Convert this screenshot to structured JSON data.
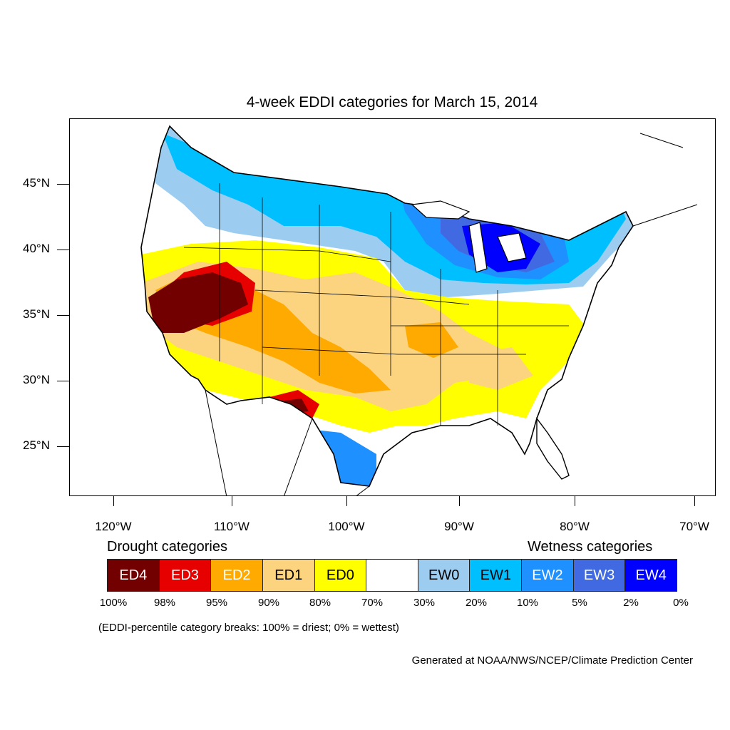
{
  "title": "4-week EDDI categories for March 15, 2014",
  "map": {
    "lat_labels": [
      "45°N",
      "40°N",
      "35°N",
      "30°N",
      "25°N"
    ],
    "lon_labels": [
      "120°W",
      "110°W",
      "100°W",
      "90°W",
      "80°W",
      "70°W"
    ]
  },
  "legend": {
    "drought_heading": "Drought categories",
    "wetness_heading": "Wetness categories",
    "categories": [
      {
        "label": "ED4",
        "color": "#730000",
        "text_color": "#ffffff"
      },
      {
        "label": "ED3",
        "color": "#e60000",
        "text_color": "#ffffff"
      },
      {
        "label": "ED2",
        "color": "#ffaa00",
        "text_color": "#ffffff"
      },
      {
        "label": "ED1",
        "color": "#fcd37f",
        "text_color": "#000000"
      },
      {
        "label": "ED0",
        "color": "#ffff00",
        "text_color": "#000000"
      },
      {
        "label": "",
        "color": "#ffffff",
        "text_color": "#000000"
      },
      {
        "label": "EW0",
        "color": "#9ccdf0",
        "text_color": "#000000"
      },
      {
        "label": "EW1",
        "color": "#00bfff",
        "text_color": "#000000"
      },
      {
        "label": "EW2",
        "color": "#1e90ff",
        "text_color": "#ffffff"
      },
      {
        "label": "EW3",
        "color": "#4169e1",
        "text_color": "#ffffff"
      },
      {
        "label": "EW4",
        "color": "#0000ff",
        "text_color": "#ffffff"
      }
    ],
    "breaks": [
      "100%",
      "98%",
      "95%",
      "90%",
      "80%",
      "70%",
      "30%",
      "20%",
      "10%",
      "5%",
      "2%",
      "0%"
    ]
  },
  "note": "(EDDI-percentile category breaks: 100% = driest; 0% = wettest)",
  "credit": "Generated at NOAA/NWS/NCEP/Climate Prediction Center"
}
